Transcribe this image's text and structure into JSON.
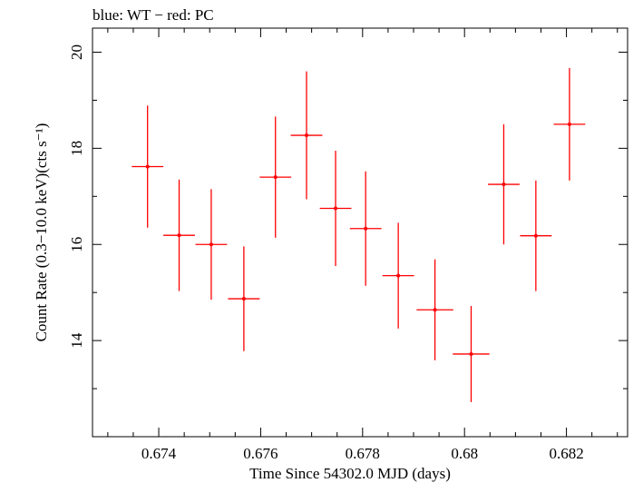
{
  "chart_data": {
    "type": "scatter",
    "title": "blue: WT − red: PC",
    "xlabel": "Time Since 54302.0 MJD (days)",
    "ylabel": "Count Rate (0.3−10.0 keV)(cts s⁻¹)",
    "xlim": [
      0.6727,
      0.6832
    ],
    "ylim": [
      12.0,
      20.5
    ],
    "x_ticks": [
      0.674,
      0.676,
      0.678,
      0.68,
      0.682
    ],
    "x_tick_labels": [
      "0.674",
      "0.676",
      "0.678",
      "0.68",
      "0.682"
    ],
    "y_ticks": [
      14,
      16,
      18,
      20
    ],
    "y_tick_labels": [
      "14",
      "16",
      "18",
      "20"
    ],
    "grid": false,
    "series": [
      {
        "name": "PC",
        "color": "#ff0000",
        "points": [
          {
            "x": 0.67378,
            "y": 17.62,
            "xerr": 0.00031,
            "yerr": 1.27
          },
          {
            "x": 0.6744,
            "y": 16.19,
            "xerr": 0.00031,
            "yerr": 1.16
          },
          {
            "x": 0.67503,
            "y": 16.0,
            "xerr": 0.00031,
            "yerr": 1.15
          },
          {
            "x": 0.67567,
            "y": 14.87,
            "xerr": 0.00031,
            "yerr": 1.09
          },
          {
            "x": 0.67629,
            "y": 17.4,
            "xerr": 0.00031,
            "yerr": 1.26
          },
          {
            "x": 0.6769,
            "y": 18.27,
            "xerr": 0.00031,
            "yerr": 1.33
          },
          {
            "x": 0.67747,
            "y": 16.75,
            "xerr": 0.00031,
            "yerr": 1.2
          },
          {
            "x": 0.67806,
            "y": 16.33,
            "xerr": 0.00031,
            "yerr": 1.19
          },
          {
            "x": 0.6787,
            "y": 15.35,
            "xerr": 0.00031,
            "yerr": 1.1
          },
          {
            "x": 0.67942,
            "y": 14.64,
            "xerr": 0.00036,
            "yerr": 1.05
          },
          {
            "x": 0.68013,
            "y": 13.72,
            "xerr": 0.00036,
            "yerr": 1.0
          },
          {
            "x": 0.68077,
            "y": 17.25,
            "xerr": 0.00031,
            "yerr": 1.25
          },
          {
            "x": 0.6814,
            "y": 16.18,
            "xerr": 0.00031,
            "yerr": 1.15
          },
          {
            "x": 0.68206,
            "y": 18.5,
            "xerr": 0.00031,
            "yerr": 1.17
          }
        ]
      }
    ]
  }
}
